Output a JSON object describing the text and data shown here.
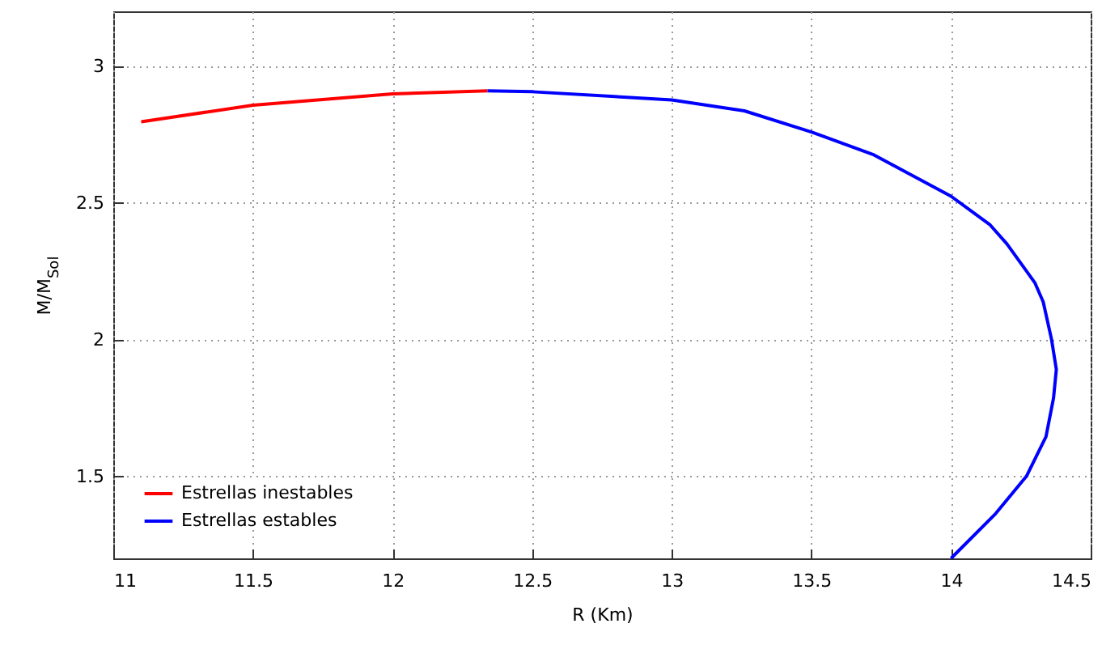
{
  "chart_data": {
    "type": "line",
    "xlabel": "R (Km)",
    "ylabel": "M/M$_{Sol}$",
    "xlim": [
      11,
      14.5
    ],
    "xticks": [
      11,
      11.5,
      12,
      12.5,
      13,
      13.5,
      14,
      14.5
    ],
    "ylim": [
      1.2,
      3.2
    ],
    "yticks": [
      1.5,
      2,
      2.5,
      3
    ],
    "grid": true,
    "legend": "bottom left",
    "series": [
      {
        "name": "Estrellas inestables",
        "color": "#ff0000",
        "x": [
          11.1,
          11.5,
          12.0,
          12.34
        ],
        "values": [
          2.796,
          2.857,
          2.898,
          2.909
        ]
      },
      {
        "name": "Estrellas estables",
        "color": "#0000ff",
        "x": [
          12.34,
          12.5,
          13.0,
          13.26,
          13.5,
          13.72,
          14.0,
          14.14,
          14.2,
          14.3,
          14.33,
          14.36,
          14.377,
          14.367,
          14.34,
          14.27,
          14.16,
          14.0
        ],
        "values": [
          2.909,
          2.906,
          2.876,
          2.836,
          2.759,
          2.677,
          2.524,
          2.419,
          2.35,
          2.208,
          2.138,
          2.0,
          1.891,
          1.786,
          1.645,
          1.5,
          1.364,
          1.2
        ]
      }
    ]
  }
}
